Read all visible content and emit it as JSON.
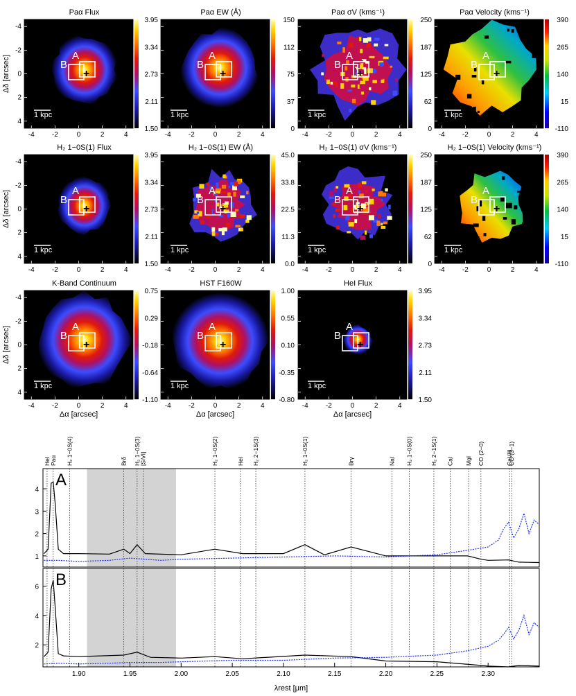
{
  "map_panels": [
    {
      "title": "Paα Flux",
      "cbar": [
        "3.95",
        "3.34",
        "2.73",
        "2.11",
        "1.50"
      ],
      "cmap": "fire",
      "shape": "round",
      "spread": 1.0
    },
    {
      "title": "Paα EW (Å)",
      "cbar": [
        "150",
        "112",
        "75",
        "37",
        "0"
      ],
      "cmap": "fire",
      "shape": "round",
      "spread": 1.2
    },
    {
      "title": "Paα σV (kms⁻¹)",
      "cbar": [
        "250",
        "187",
        "125",
        "62",
        "0"
      ],
      "cmap": "fire",
      "shape": "patchy",
      "spread": 1.3
    },
    {
      "title": "Paα Velocity (kms⁻¹)",
      "cbar": [
        "390",
        "265",
        "140",
        "15",
        "-110"
      ],
      "cmap": "rainbow",
      "shape": "velocity",
      "spread": 1.3
    },
    {
      "title": "H₂ 1−0S(1) Flux",
      "cbar": [
        "3.95",
        "3.34",
        "2.73",
        "2.11",
        "1.50"
      ],
      "cmap": "fire",
      "shape": "round",
      "spread": 0.85
    },
    {
      "title": "H₂ 1−0S(1) EW (Å)",
      "cbar": [
        "45.0",
        "33.8",
        "22.5",
        "11.3",
        "0.0"
      ],
      "cmap": "fire",
      "shape": "patchy",
      "spread": 1.0
    },
    {
      "title": "H₂ 1−0S(1) σV (kms⁻¹)",
      "cbar": [
        "250",
        "187",
        "125",
        "62",
        "0"
      ],
      "cmap": "fire",
      "shape": "patchy",
      "spread": 1.0
    },
    {
      "title": "H₂ 1−0S(1) Velocity (kms⁻¹)",
      "cbar": [
        "390",
        "265",
        "140",
        "15",
        "-110"
      ],
      "cmap": "rainbow",
      "shape": "velocity",
      "spread": 1.0
    },
    {
      "title": "K-Band Continuum",
      "cbar": [
        "0.75",
        "0.29",
        "-0.18",
        "-0.64",
        "-1.10"
      ],
      "cmap": "fire",
      "shape": "round",
      "spread": 1.4
    },
    {
      "title": "HST F160W",
      "cbar": [
        "1.00",
        "0.55",
        "0.10",
        "-0.35",
        "-0.80"
      ],
      "cmap": "fire",
      "shape": "round",
      "spread": 1.45
    },
    {
      "title": "HeI Flux",
      "cbar": [
        "3.95",
        "3.34",
        "2.73",
        "2.11",
        "1.50"
      ],
      "cmap": "fire",
      "shape": "compact",
      "spread": 0.45
    }
  ],
  "map_axes": {
    "ylabel": "Δδ [arcsec]",
    "xlabel": "Δα [arcsec]",
    "ticks": [
      "-4",
      "-2",
      "0",
      "2",
      "4"
    ],
    "scalebar": "1 kpc",
    "box_a": "A",
    "box_b": "B",
    "nucleus": "+"
  },
  "colors": {
    "spectrum_a": "#000000",
    "spectrum_b": "#1a2cff",
    "shade": "#d3d3d3"
  },
  "chart_data": {
    "type": "line",
    "xlabel": "λrest [μm]",
    "xlim": [
      1.865,
      2.35
    ],
    "xticks": [
      "1.90",
      "1.95",
      "2.00",
      "2.05",
      "2.10",
      "2.15",
      "2.20",
      "2.25",
      "2.30"
    ],
    "shaded_regions": [
      [
        1.908,
        1.95
      ],
      [
        1.95,
        1.995
      ]
    ],
    "lines": [
      {
        "label": "HeI",
        "x": 1.869
      },
      {
        "label": "Paα",
        "x": 1.875
      },
      {
        "label": "H₂ 1−0S(4)",
        "x": 1.891
      },
      {
        "label": "Brδ",
        "x": 1.944
      },
      {
        "label": "H₂ 1−0S(3)",
        "x": 1.957
      },
      {
        "label": "[SiVI]",
        "x": 1.963
      },
      {
        "label": "H₂ 1−0S(2)",
        "x": 2.033
      },
      {
        "label": "HeI",
        "x": 2.058
      },
      {
        "label": "H₂ 2−1S(3)",
        "x": 2.073
      },
      {
        "label": "H₂ 1−0S(1)",
        "x": 2.121
      },
      {
        "label": "Brγ",
        "x": 2.166
      },
      {
        "label": "NaI",
        "x": 2.206
      },
      {
        "label": "H₂ 1−0S(0)",
        "x": 2.223
      },
      {
        "label": "H₂ 2−1S(1)",
        "x": 2.247
      },
      {
        "label": "CaI",
        "x": 2.263
      },
      {
        "label": "MgI",
        "x": 2.281
      },
      {
        "label": "CO (2−0)",
        "x": 2.293
      },
      {
        "label": "CaVIII",
        "x": 2.321
      },
      {
        "label": "CO (3−1)",
        "x": 2.323
      }
    ],
    "panels": [
      {
        "label": "A",
        "ylim": [
          0.5,
          4.9
        ],
        "yticks": [
          "1",
          "2",
          "3",
          "4"
        ],
        "series": [
          {
            "color": "#000000",
            "x": [
              1.866,
              1.87,
              1.873,
              1.875,
              1.877,
              1.88,
              1.885,
              1.89,
              1.9,
              1.93,
              1.944,
              1.95,
              1.957,
              1.965,
              2.0,
              2.033,
              2.06,
              2.1,
              2.121,
              2.14,
              2.166,
              2.2,
              2.25,
              2.28,
              2.293,
              2.3,
              2.32,
              2.33,
              2.35
            ],
            "y": [
              1.1,
              1.3,
              4.25,
              4.3,
              3.3,
              1.3,
              1.1,
              1.1,
              1.1,
              1.08,
              1.3,
              1.1,
              1.5,
              1.1,
              1.05,
              1.3,
              1.1,
              1.1,
              1.5,
              1.05,
              1.4,
              1.0,
              1.0,
              1.0,
              0.85,
              0.8,
              0.82,
              0.72,
              0.7
            ]
          },
          {
            "color": "#1a2cff",
            "x": [
              1.866,
              1.88,
              1.9,
              1.93,
              1.95,
              1.98,
              2.0,
              2.05,
              2.1,
              2.15,
              2.2,
              2.25,
              2.28,
              2.3,
              2.31,
              2.315,
              2.32,
              2.325,
              2.33,
              2.335,
              2.34,
              2.345,
              2.35
            ],
            "y": [
              0.8,
              0.8,
              0.75,
              0.8,
              0.9,
              0.8,
              0.85,
              0.9,
              0.95,
              1.0,
              0.95,
              1.05,
              1.25,
              1.4,
              1.7,
              2.2,
              2.5,
              1.8,
              2.2,
              2.9,
              2.0,
              2.6,
              2.4
            ]
          }
        ]
      },
      {
        "label": "B",
        "ylim": [
          0.5,
          7.2
        ],
        "yticks": [
          "2",
          "4",
          "6"
        ],
        "series": [
          {
            "color": "#000000",
            "x": [
              1.866,
              1.87,
              1.873,
              1.875,
              1.877,
              1.88,
              1.885,
              1.9,
              1.944,
              1.957,
              1.97,
              2.0,
              2.033,
              2.06,
              2.121,
              2.166,
              2.2,
              2.25,
              2.293,
              2.3,
              2.32,
              2.33,
              2.35
            ],
            "y": [
              1.2,
              1.5,
              5.8,
              6.4,
              4.5,
              1.4,
              1.25,
              1.2,
              1.3,
              1.5,
              1.15,
              1.1,
              1.2,
              1.05,
              1.3,
              1.2,
              0.9,
              0.85,
              0.6,
              0.55,
              0.5,
              0.6,
              0.55
            ]
          },
          {
            "color": "#1a2cff",
            "x": [
              1.866,
              1.88,
              1.9,
              1.93,
              1.95,
              1.98,
              2.0,
              2.05,
              2.1,
              2.15,
              2.2,
              2.25,
              2.28,
              2.3,
              2.31,
              2.315,
              2.32,
              2.325,
              2.33,
              2.335,
              2.34,
              2.345,
              2.35
            ],
            "y": [
              0.7,
              0.75,
              0.7,
              0.75,
              0.8,
              0.8,
              0.85,
              0.95,
              0.95,
              1.1,
              1.15,
              1.3,
              1.6,
              1.9,
              2.3,
              2.7,
              3.2,
              2.4,
              3.0,
              4.0,
              2.7,
              3.5,
              3.2
            ]
          }
        ]
      }
    ]
  }
}
